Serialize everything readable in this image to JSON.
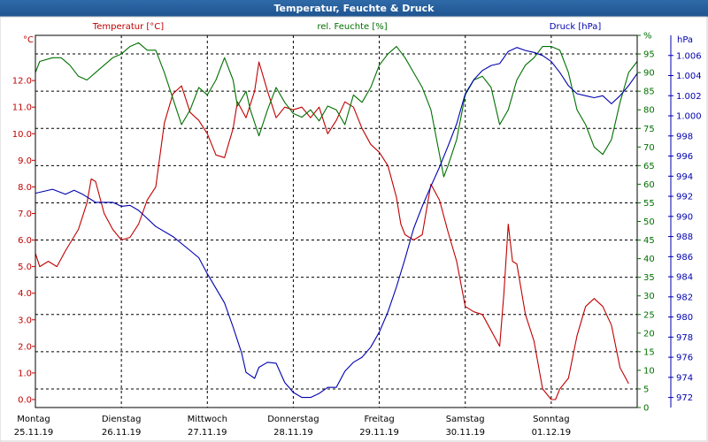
{
  "window": {
    "title": "Temperatur, Feuchte & Druck"
  },
  "chart_data": {
    "type": "line",
    "title": "Temperatur, Feuchte & Druck",
    "grid": true,
    "x_categories": [
      {
        "day": "Montag",
        "date": "25.11.19"
      },
      {
        "day": "Dienstag",
        "date": "26.11.19"
      },
      {
        "day": "Mittwoch",
        "date": "27.11.19"
      },
      {
        "day": "Donnerstag",
        "date": "28.11.19"
      },
      {
        "day": "Freitag",
        "date": "29.11.19"
      },
      {
        "day": "Samstag",
        "date": "30.11.19"
      },
      {
        "day": "Sonntag",
        "date": "01.12.19"
      }
    ],
    "axes": {
      "temperature": {
        "unit_label": "°C",
        "header": "Temperatur [°C]",
        "color": "#c00000",
        "range": [
          -0.3,
          13.7
        ],
        "ticks": [
          "0.0",
          "1.0",
          "2.0",
          "3.0",
          "4.0",
          "5.0",
          "6.0",
          "7.0",
          "8.0",
          "9.0",
          "10.0",
          "11.0",
          "12.0"
        ]
      },
      "humidity": {
        "unit_label": "%",
        "header": "rel. Feuchte [%]",
        "color": "#007000",
        "range": [
          0,
          100
        ],
        "ticks": [
          "0",
          "5",
          "10",
          "15",
          "20",
          "25",
          "30",
          "35",
          "40",
          "45",
          "50",
          "55",
          "60",
          "65",
          "70",
          "75",
          "80",
          "85",
          "90",
          "95",
          "%"
        ]
      },
      "pressure": {
        "unit_label": "hPa",
        "header": "Druck [hPa]",
        "color": "#0000b0",
        "range": [
          971,
          1008
        ],
        "ticks": [
          "972",
          "974",
          "976",
          "978",
          "980",
          "982",
          "984",
          "986",
          "988",
          "990",
          "992",
          "994",
          "996",
          "998",
          "1.000",
          "1.002",
          "1.004",
          "1.006"
        ]
      }
    },
    "series": [
      {
        "name": "Temperatur [°C]",
        "axis": "temperature",
        "color": "#c00000",
        "points": [
          [
            0,
            5.5
          ],
          [
            0.05,
            5.0
          ],
          [
            0.15,
            5.2
          ],
          [
            0.25,
            5.0
          ],
          [
            0.35,
            5.6
          ],
          [
            0.5,
            6.4
          ],
          [
            0.6,
            7.4
          ],
          [
            0.65,
            8.3
          ],
          [
            0.7,
            8.2
          ],
          [
            0.8,
            7.0
          ],
          [
            0.9,
            6.4
          ],
          [
            1.0,
            6.0
          ],
          [
            1.1,
            6.1
          ],
          [
            1.2,
            6.6
          ],
          [
            1.3,
            7.5
          ],
          [
            1.4,
            8.0
          ],
          [
            1.5,
            10.4
          ],
          [
            1.6,
            11.5
          ],
          [
            1.7,
            11.8
          ],
          [
            1.75,
            11.3
          ],
          [
            1.8,
            10.8
          ],
          [
            1.9,
            10.5
          ],
          [
            2.0,
            10.0
          ],
          [
            2.1,
            9.2
          ],
          [
            2.2,
            9.1
          ],
          [
            2.3,
            10.2
          ],
          [
            2.35,
            11.2
          ],
          [
            2.45,
            10.6
          ],
          [
            2.55,
            11.6
          ],
          [
            2.6,
            12.7
          ],
          [
            2.7,
            11.6
          ],
          [
            2.8,
            10.6
          ],
          [
            2.9,
            11.0
          ],
          [
            3.0,
            10.9
          ],
          [
            3.1,
            11.0
          ],
          [
            3.2,
            10.6
          ],
          [
            3.3,
            11.0
          ],
          [
            3.4,
            10.0
          ],
          [
            3.5,
            10.5
          ],
          [
            3.6,
            11.2
          ],
          [
            3.7,
            11.0
          ],
          [
            3.8,
            10.2
          ],
          [
            3.9,
            9.6
          ],
          [
            4.0,
            9.3
          ],
          [
            4.1,
            8.8
          ],
          [
            4.2,
            7.6
          ],
          [
            4.25,
            6.6
          ],
          [
            4.3,
            6.2
          ],
          [
            4.4,
            6.0
          ],
          [
            4.5,
            6.2
          ],
          [
            4.6,
            8.1
          ],
          [
            4.7,
            7.5
          ],
          [
            4.8,
            6.3
          ],
          [
            4.9,
            5.2
          ],
          [
            5.0,
            3.5
          ],
          [
            5.1,
            3.3
          ],
          [
            5.2,
            3.2
          ],
          [
            5.3,
            2.6
          ],
          [
            5.4,
            2.0
          ],
          [
            5.45,
            4.0
          ],
          [
            5.5,
            6.6
          ],
          [
            5.55,
            5.2
          ],
          [
            5.6,
            5.1
          ],
          [
            5.7,
            3.2
          ],
          [
            5.8,
            2.2
          ],
          [
            5.9,
            0.4
          ],
          [
            6.0,
            0.0
          ],
          [
            6.05,
            0.0
          ],
          [
            6.1,
            0.4
          ],
          [
            6.2,
            0.8
          ],
          [
            6.3,
            2.4
          ],
          [
            6.4,
            3.5
          ],
          [
            6.5,
            3.8
          ],
          [
            6.6,
            3.5
          ],
          [
            6.7,
            2.8
          ],
          [
            6.8,
            1.2
          ],
          [
            6.9,
            0.6
          ]
        ]
      },
      {
        "name": "rel. Feuchte [%]",
        "axis": "humidity",
        "color": "#007000",
        "points": [
          [
            0,
            90
          ],
          [
            0.05,
            93
          ],
          [
            0.2,
            94
          ],
          [
            0.3,
            94
          ],
          [
            0.4,
            92
          ],
          [
            0.5,
            89
          ],
          [
            0.6,
            88
          ],
          [
            0.7,
            90
          ],
          [
            0.8,
            92
          ],
          [
            0.9,
            94
          ],
          [
            1.0,
            95
          ],
          [
            1.1,
            97
          ],
          [
            1.2,
            98
          ],
          [
            1.3,
            96
          ],
          [
            1.4,
            96
          ],
          [
            1.5,
            90
          ],
          [
            1.6,
            83
          ],
          [
            1.7,
            76
          ],
          [
            1.8,
            80
          ],
          [
            1.9,
            86
          ],
          [
            2.0,
            84
          ],
          [
            2.1,
            88
          ],
          [
            2.2,
            94
          ],
          [
            2.3,
            88
          ],
          [
            2.35,
            81
          ],
          [
            2.45,
            85
          ],
          [
            2.5,
            80
          ],
          [
            2.6,
            73
          ],
          [
            2.7,
            80
          ],
          [
            2.8,
            86
          ],
          [
            2.9,
            82
          ],
          [
            3.0,
            79
          ],
          [
            3.1,
            78
          ],
          [
            3.2,
            80
          ],
          [
            3.3,
            77
          ],
          [
            3.4,
            81
          ],
          [
            3.5,
            80
          ],
          [
            3.6,
            76
          ],
          [
            3.7,
            84
          ],
          [
            3.8,
            82
          ],
          [
            3.9,
            86
          ],
          [
            4.0,
            92
          ],
          [
            4.1,
            95
          ],
          [
            4.2,
            97
          ],
          [
            4.3,
            94
          ],
          [
            4.4,
            90
          ],
          [
            4.5,
            86
          ],
          [
            4.6,
            80
          ],
          [
            4.7,
            68
          ],
          [
            4.75,
            62
          ],
          [
            4.8,
            65
          ],
          [
            4.9,
            72
          ],
          [
            5.0,
            84
          ],
          [
            5.1,
            88
          ],
          [
            5.2,
            89
          ],
          [
            5.3,
            86
          ],
          [
            5.4,
            76
          ],
          [
            5.5,
            80
          ],
          [
            5.6,
            88
          ],
          [
            5.7,
            92
          ],
          [
            5.8,
            94
          ],
          [
            5.9,
            97
          ],
          [
            6.0,
            97
          ],
          [
            6.1,
            96
          ],
          [
            6.2,
            90
          ],
          [
            6.3,
            80
          ],
          [
            6.4,
            76
          ],
          [
            6.5,
            70
          ],
          [
            6.6,
            68
          ],
          [
            6.7,
            72
          ],
          [
            6.8,
            82
          ],
          [
            6.9,
            90
          ],
          [
            7.0,
            93
          ]
        ]
      },
      {
        "name": "Druck [hPa]",
        "axis": "pressure",
        "color": "#0000b0",
        "points": [
          [
            0,
            992.3
          ],
          [
            0.2,
            992.7
          ],
          [
            0.35,
            992.2
          ],
          [
            0.45,
            992.6
          ],
          [
            0.55,
            992.2
          ],
          [
            0.7,
            991.4
          ],
          [
            0.9,
            991.4
          ],
          [
            1.0,
            991.0
          ],
          [
            1.1,
            991.1
          ],
          [
            1.2,
            990.6
          ],
          [
            1.4,
            989.0
          ],
          [
            1.6,
            988.0
          ],
          [
            1.8,
            986.6
          ],
          [
            1.9,
            985.9
          ],
          [
            2.0,
            984.3
          ],
          [
            2.2,
            981.4
          ],
          [
            2.3,
            979.0
          ],
          [
            2.4,
            976.4
          ],
          [
            2.45,
            974.5
          ],
          [
            2.55,
            973.9
          ],
          [
            2.6,
            975.0
          ],
          [
            2.7,
            975.5
          ],
          [
            2.8,
            975.4
          ],
          [
            2.9,
            973.5
          ],
          [
            3.0,
            972.5
          ],
          [
            3.1,
            972.0
          ],
          [
            3.2,
            972.0
          ],
          [
            3.3,
            972.4
          ],
          [
            3.4,
            973.0
          ],
          [
            3.5,
            973.0
          ],
          [
            3.6,
            974.6
          ],
          [
            3.7,
            975.5
          ],
          [
            3.8,
            976.0
          ],
          [
            3.9,
            977.0
          ],
          [
            4.0,
            978.5
          ],
          [
            4.1,
            980.5
          ],
          [
            4.2,
            983.0
          ],
          [
            4.3,
            985.8
          ],
          [
            4.4,
            988.8
          ],
          [
            4.5,
            991.0
          ],
          [
            4.6,
            993.0
          ],
          [
            4.7,
            994.9
          ],
          [
            4.8,
            997.0
          ],
          [
            4.9,
            999.2
          ],
          [
            5.0,
            1002.2
          ],
          [
            5.1,
            1003.6
          ],
          [
            5.2,
            1004.5
          ],
          [
            5.3,
            1005.0
          ],
          [
            5.4,
            1005.2
          ],
          [
            5.5,
            1006.4
          ],
          [
            5.6,
            1006.8
          ],
          [
            5.7,
            1006.5
          ],
          [
            5.8,
            1006.3
          ],
          [
            5.9,
            1006.0
          ],
          [
            6.0,
            1005.4
          ],
          [
            6.1,
            1004.3
          ],
          [
            6.2,
            1003.0
          ],
          [
            6.3,
            1002.2
          ],
          [
            6.4,
            1002.0
          ],
          [
            6.5,
            1001.8
          ],
          [
            6.6,
            1002.0
          ],
          [
            6.7,
            1001.2
          ],
          [
            6.8,
            1002.0
          ],
          [
            6.9,
            1003.0
          ],
          [
            7.0,
            1004.2
          ]
        ]
      }
    ]
  }
}
